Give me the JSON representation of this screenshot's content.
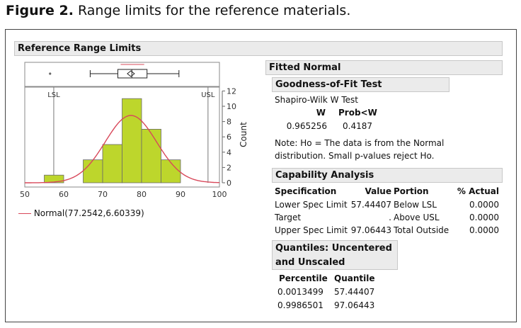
{
  "figure": {
    "label": "Figure 2.",
    "caption": "Range limits for the reference materials."
  },
  "report": {
    "title": "Reference Range Limits",
    "fitted_normal": "Fitted Normal",
    "gof": {
      "title": "Goodness-of-Fit Test",
      "test_name": "Shapiro-Wilk W Test",
      "col_w": "W",
      "col_prob": "Prob<W",
      "w": "0.965256",
      "prob": "0.4187",
      "note_line1": "Note: Ho = The data is from the Normal",
      "note_line2": "distribution. Small p-values reject Ho."
    },
    "capability": {
      "title": "Capability Analysis",
      "headers": [
        "Specification",
        "Value",
        "Portion",
        "% Actual"
      ],
      "rows": [
        {
          "spec": "Lower Spec Limit",
          "value": "57.44407",
          "portion": "Below LSL",
          "actual": "0.0000"
        },
        {
          "spec": "Target",
          "value": ".",
          "portion": "Above USL",
          "actual": "0.0000"
        },
        {
          "spec": "Upper Spec Limit",
          "value": "97.06443",
          "portion": "Total Outside",
          "actual": "0.0000"
        }
      ]
    },
    "quantiles": {
      "title_line1": "Quantiles: Uncentered",
      "title_line2": "and Unscaled",
      "col_percentile": "Percentile",
      "col_quantile": "Quantile",
      "rows": [
        {
          "percentile": "0.0013499",
          "quantile": "57.44407"
        },
        {
          "percentile": "0.9986501",
          "quantile": "97.06443"
        }
      ]
    }
  },
  "legend": {
    "normal_label": "Normal(77.2542,6.60339)"
  },
  "chart_data": {
    "type": "bar",
    "x_ticks": [
      "50",
      "60",
      "70",
      "80",
      "90",
      "100"
    ],
    "y_ticks": [
      "0",
      "2",
      "4",
      "6",
      "8",
      "10",
      "12"
    ],
    "ylabel": "Count",
    "xlim": [
      50,
      100
    ],
    "ylim": [
      0,
      12.5
    ],
    "bins": [
      {
        "start": 55,
        "end": 60,
        "count": 1
      },
      {
        "start": 60,
        "end": 65,
        "count": 0
      },
      {
        "start": 65,
        "end": 70,
        "count": 3
      },
      {
        "start": 70,
        "end": 75,
        "count": 5
      },
      {
        "start": 75,
        "end": 80,
        "count": 11
      },
      {
        "start": 80,
        "end": 85,
        "count": 7
      },
      {
        "start": 85,
        "end": 90,
        "count": 3
      }
    ],
    "normal_fit": {
      "mean": 77.2542,
      "sd": 6.60339,
      "peak_count": 8.8
    },
    "spec_limits": {
      "lsl": 57.44407,
      "usl": 97.06443,
      "lsl_label": "LSL",
      "usl_label": "USL"
    },
    "outlier_box": {
      "outlier": 56.5,
      "whisker_low": 66.8,
      "q1": 73.9,
      "median": 77.5,
      "q3": 81.4,
      "whisker_high": 89.6,
      "mean": 77.2542
    },
    "colors": {
      "bar": "#bdd62c",
      "bar_edge": "#6a6a6a",
      "curve": "#d8485a",
      "spec": "#777777"
    }
  }
}
